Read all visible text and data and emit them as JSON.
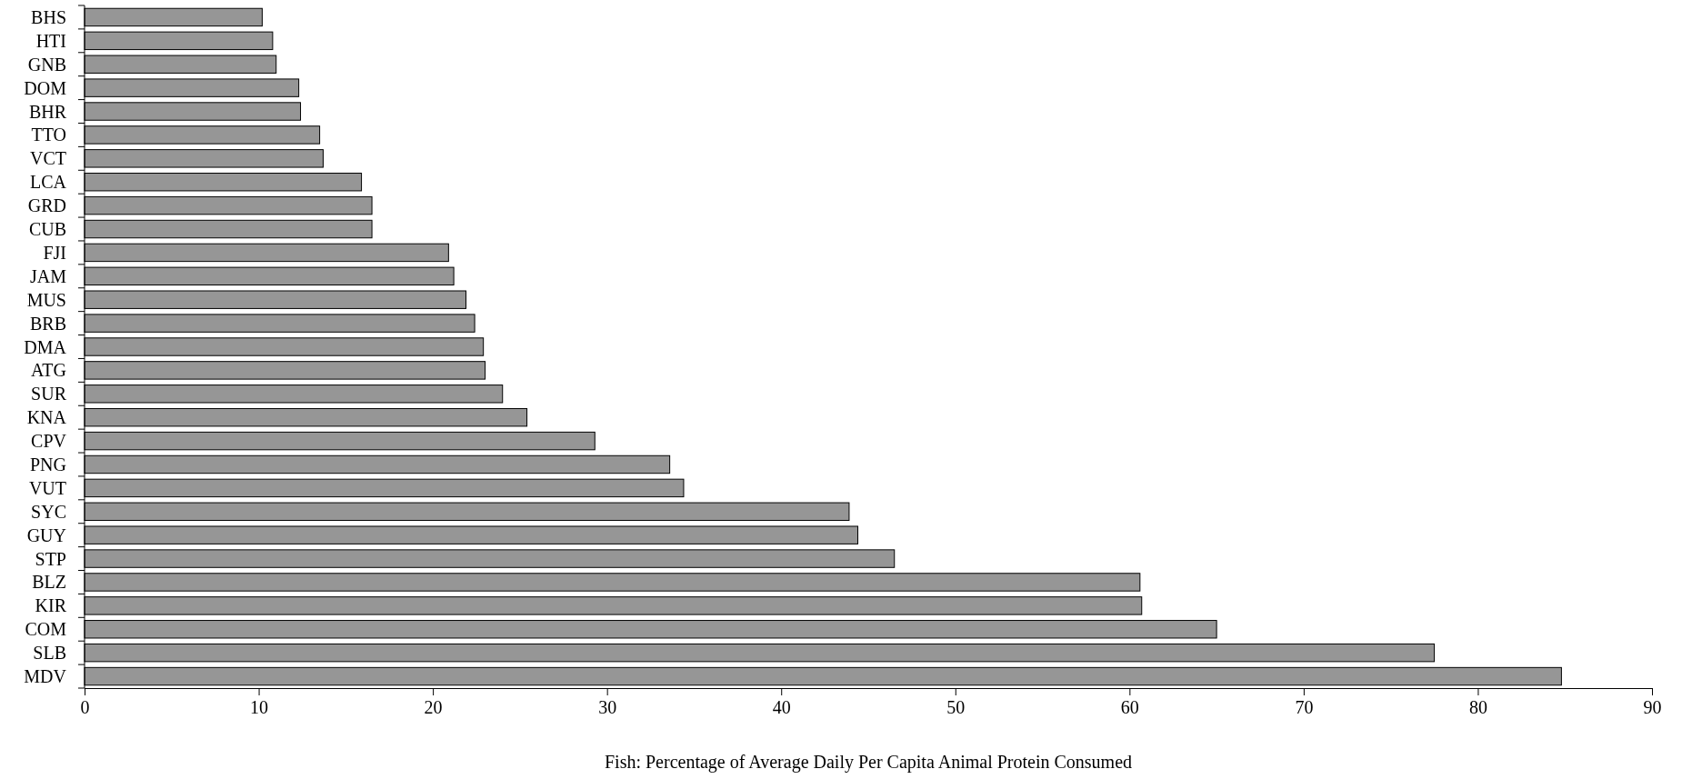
{
  "chart_data": {
    "type": "bar",
    "orientation": "horizontal",
    "xlabel": "Fish: Percentage of Average Daily Per Capita Animal Protein Consumed",
    "categories": [
      "BHS",
      "HTI",
      "GNB",
      "DOM",
      "BHR",
      "TTO",
      "VCT",
      "LCA",
      "GRD",
      "CUB",
      "FJI",
      "JAM",
      "MUS",
      "BRB",
      "DMA",
      "ATG",
      "SUR",
      "KNA",
      "CPV",
      "PNG",
      "VUT",
      "SYC",
      "GUY",
      "STP",
      "BLZ",
      "KIR",
      "COM",
      "SLB",
      "MDV"
    ],
    "values": [
      10.2,
      10.8,
      11.0,
      12.3,
      12.4,
      13.5,
      13.7,
      15.9,
      16.5,
      16.5,
      20.9,
      21.2,
      21.9,
      22.4,
      22.9,
      23.0,
      24.0,
      25.4,
      29.3,
      33.6,
      34.4,
      43.9,
      44.4,
      46.5,
      60.6,
      60.7,
      65.0,
      77.5,
      84.8
    ],
    "color": "#969696",
    "xlim": [
      0,
      90
    ],
    "xticks": [
      0,
      10,
      20,
      30,
      40,
      50,
      60,
      70,
      80,
      90
    ],
    "grid": false,
    "legend": false
  }
}
